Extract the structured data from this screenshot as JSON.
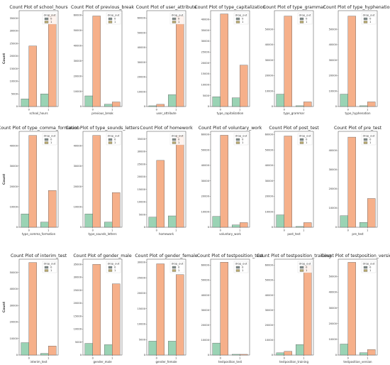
{
  "legend": {
    "title": "drop_out",
    "labels": [
      "0",
      "1"
    ]
  },
  "colors": {
    "0": "#9ad3b4",
    "1": "#f6b08a",
    "legend_0": "#7f8c8a",
    "legend_1": "#b8a96e",
    "edge": "#5a5a5a"
  },
  "chart_data": [
    {
      "type": "bar",
      "title": "Count Plot of school_hours",
      "xlabel": "school_hours",
      "ylabel": "Count",
      "categories": [
        "0",
        "1"
      ],
      "ylim": [
        0,
        38000
      ],
      "yticks": [
        0,
        5000,
        10000,
        15000,
        20000,
        25000,
        30000,
        35000
      ],
      "series": [
        {
          "name": "0",
          "values": [
            3000,
            5000
          ]
        },
        {
          "name": "1",
          "values": [
            24000,
            36500
          ]
        }
      ]
    },
    {
      "type": "bar",
      "title": "Count Plot of previous_break",
      "xlabel": "previous_break",
      "ylabel": "",
      "categories": [
        "0",
        "1"
      ],
      "ylim": [
        0,
        63000
      ],
      "yticks": [
        0,
        10000,
        20000,
        30000,
        40000,
        50000,
        60000
      ],
      "series": [
        {
          "name": "0",
          "values": [
            7000,
            1500
          ]
        },
        {
          "name": "1",
          "values": [
            59500,
            3000
          ]
        }
      ]
    },
    {
      "type": "bar",
      "title": "Count Plot of user_attribute",
      "xlabel": "user_attribute",
      "ylabel": "",
      "categories": [
        "0",
        "1"
      ],
      "ylim": [
        0,
        65000
      ],
      "yticks": [
        0,
        10000,
        20000,
        30000,
        40000,
        50000,
        60000
      ],
      "series": [
        {
          "name": "0",
          "values": [
            500,
            8000
          ]
        },
        {
          "name": "1",
          "values": [
            1500,
            61500
          ]
        }
      ]
    },
    {
      "type": "bar",
      "title": "Count Plot of type_capitalization",
      "xlabel": "type_capitalization",
      "ylabel": "",
      "categories": [
        "0",
        "1"
      ],
      "ylim": [
        0,
        44000
      ],
      "yticks": [
        0,
        5000,
        10000,
        15000,
        20000,
        25000,
        30000,
        35000,
        40000
      ],
      "series": [
        {
          "name": "0",
          "values": [
            4500,
            4000
          ]
        },
        {
          "name": "1",
          "values": [
            42500,
            19000
          ]
        }
      ]
    },
    {
      "type": "bar",
      "title": "Count Plot of type_grammar",
      "xlabel": "type_grammar",
      "ylabel": "",
      "categories": [
        "0",
        "1"
      ],
      "ylim": [
        0,
        62000
      ],
      "yticks": [
        0,
        10000,
        20000,
        30000,
        40000,
        50000
      ],
      "series": [
        {
          "name": "0",
          "values": [
            8000,
            500
          ]
        },
        {
          "name": "1",
          "values": [
            58500,
            3000
          ]
        }
      ]
    },
    {
      "type": "bar",
      "title": "Count Plot of type_hyphenation",
      "xlabel": "type_hyphenation",
      "ylabel": "",
      "categories": [
        "0",
        "1"
      ],
      "ylim": [
        0,
        62000
      ],
      "yticks": [
        0,
        10000,
        20000,
        30000,
        40000,
        50000
      ],
      "series": [
        {
          "name": "0",
          "values": [
            8000,
            500
          ]
        },
        {
          "name": "1",
          "values": [
            58500,
            3000
          ]
        }
      ]
    },
    {
      "type": "bar",
      "title": "Count Plot of type_comma_formation",
      "xlabel": "type_comma_formation",
      "ylabel": "Count",
      "categories": [
        "0",
        "1"
      ],
      "ylim": [
        0,
        47000
      ],
      "yticks": [
        0,
        10000,
        20000,
        30000,
        40000
      ],
      "series": [
        {
          "name": "0",
          "values": [
            6500,
            2500
          ]
        },
        {
          "name": "1",
          "values": [
            45000,
            18000
          ]
        }
      ]
    },
    {
      "type": "bar",
      "title": "Count Plot of type_sounds_letters",
      "xlabel": "type_sounds_letters",
      "ylabel": "",
      "categories": [
        "0",
        "1"
      ],
      "ylim": [
        0,
        47000
      ],
      "yticks": [
        0,
        10000,
        20000,
        30000,
        40000
      ],
      "series": [
        {
          "name": "0",
          "values": [
            6500,
            2500
          ]
        },
        {
          "name": "1",
          "values": [
            45000,
            17000
          ]
        }
      ]
    },
    {
      "type": "bar",
      "title": "Count Plot of homework",
      "xlabel": "homework",
      "ylabel": "",
      "categories": [
        "0",
        "1"
      ],
      "ylim": [
        0,
        38000
      ],
      "yticks": [
        0,
        5000,
        10000,
        15000,
        20000,
        25000,
        30000,
        35000
      ],
      "series": [
        {
          "name": "0",
          "values": [
            4000,
            4500
          ]
        },
        {
          "name": "1",
          "values": [
            26500,
            36500
          ]
        }
      ]
    },
    {
      "type": "bar",
      "title": "Count Plot of voluntary_work",
      "xlabel": "voluntary_work",
      "ylabel": "",
      "categories": [
        "0",
        "1"
      ],
      "ylim": [
        0,
        62000
      ],
      "yticks": [
        0,
        10000,
        20000,
        30000,
        40000,
        50000,
        60000
      ],
      "series": [
        {
          "name": "0",
          "values": [
            7000,
            1500
          ]
        },
        {
          "name": "1",
          "values": [
            59500,
            3000
          ]
        }
      ]
    },
    {
      "type": "bar",
      "title": "Count Plot of post_test",
      "xlabel": "post_test",
      "ylabel": "",
      "categories": [
        "0",
        "1"
      ],
      "ylim": [
        0,
        62000
      ],
      "yticks": [
        0,
        10000,
        20000,
        30000,
        40000,
        50000,
        60000
      ],
      "series": [
        {
          "name": "0",
          "values": [
            8000,
            500
          ]
        },
        {
          "name": "1",
          "values": [
            59000,
            3000
          ]
        }
      ]
    },
    {
      "type": "bar",
      "title": "Count Plot of pre_test",
      "xlabel": "pre_test",
      "ylabel": "",
      "categories": [
        "0",
        "1"
      ],
      "ylim": [
        0,
        50000
      ],
      "yticks": [
        0,
        10000,
        20000,
        30000,
        40000
      ],
      "series": [
        {
          "name": "0",
          "values": [
            6000,
            2500
          ]
        },
        {
          "name": "1",
          "values": [
            47000,
            15000
          ]
        }
      ]
    },
    {
      "type": "bar",
      "title": "Count Plot of interim_test",
      "xlabel": "interim_test",
      "ylabel": "Count",
      "categories": [
        "0",
        "1"
      ],
      "ylim": [
        0,
        58000
      ],
      "yticks": [
        0,
        10000,
        20000,
        30000,
        40000,
        50000
      ],
      "series": [
        {
          "name": "0",
          "values": [
            7500,
            1000
          ]
        },
        {
          "name": "1",
          "values": [
            56000,
            5500
          ]
        }
      ]
    },
    {
      "type": "bar",
      "title": "Count Plot of gender_male",
      "xlabel": "gender_male",
      "ylabel": "",
      "categories": [
        "0",
        "1"
      ],
      "ylim": [
        0,
        37000
      ],
      "yticks": [
        0,
        5000,
        10000,
        15000,
        20000,
        25000,
        30000,
        35000
      ],
      "series": [
        {
          "name": "0",
          "values": [
            4500,
            4000
          ]
        },
        {
          "name": "1",
          "values": [
            35000,
            27500
          ]
        }
      ]
    },
    {
      "type": "bar",
      "title": "Count Plot of gender_female",
      "xlabel": "gender_female",
      "ylabel": "",
      "categories": [
        "0",
        "1"
      ],
      "ylim": [
        0,
        31000
      ],
      "yticks": [
        0,
        5000,
        10000,
        15000,
        20000,
        25000,
        30000
      ],
      "series": [
        {
          "name": "0",
          "values": [
            4500,
            4500
          ]
        },
        {
          "name": "1",
          "values": [
            29500,
            26000
          ]
        }
      ]
    },
    {
      "type": "bar",
      "title": "Count Plot of testposition_test",
      "xlabel": "testposition_test",
      "ylabel": "",
      "categories": [
        "0",
        "1"
      ],
      "ylim": [
        0,
        64000
      ],
      "yticks": [
        0,
        10000,
        20000,
        30000,
        40000,
        50000,
        60000
      ],
      "series": [
        {
          "name": "0",
          "values": [
            8000,
            500
          ]
        },
        {
          "name": "1",
          "values": [
            62000,
            500
          ]
        }
      ]
    },
    {
      "type": "bar",
      "title": "Count Plot of testposition_training",
      "xlabel": "testposition_training",
      "ylabel": "",
      "categories": [
        "0",
        "1"
      ],
      "ylim": [
        0,
        64000
      ],
      "yticks": [
        0,
        10000,
        20000,
        30000,
        40000,
        50000,
        60000
      ],
      "series": [
        {
          "name": "0",
          "values": [
            1500,
            7000
          ]
        },
        {
          "name": "1",
          "values": [
            2500,
            60000
          ]
        }
      ]
    },
    {
      "type": "bar",
      "title": "Count Plot of testposition_version",
      "xlabel": "testposition_version",
      "ylabel": "",
      "categories": [
        "0",
        "1"
      ],
      "ylim": [
        0,
        61000
      ],
      "yticks": [
        0,
        10000,
        20000,
        30000,
        40000,
        50000
      ],
      "series": [
        {
          "name": "0",
          "values": [
            7000,
            1500
          ]
        },
        {
          "name": "1",
          "values": [
            59000,
            3500
          ]
        }
      ]
    }
  ]
}
